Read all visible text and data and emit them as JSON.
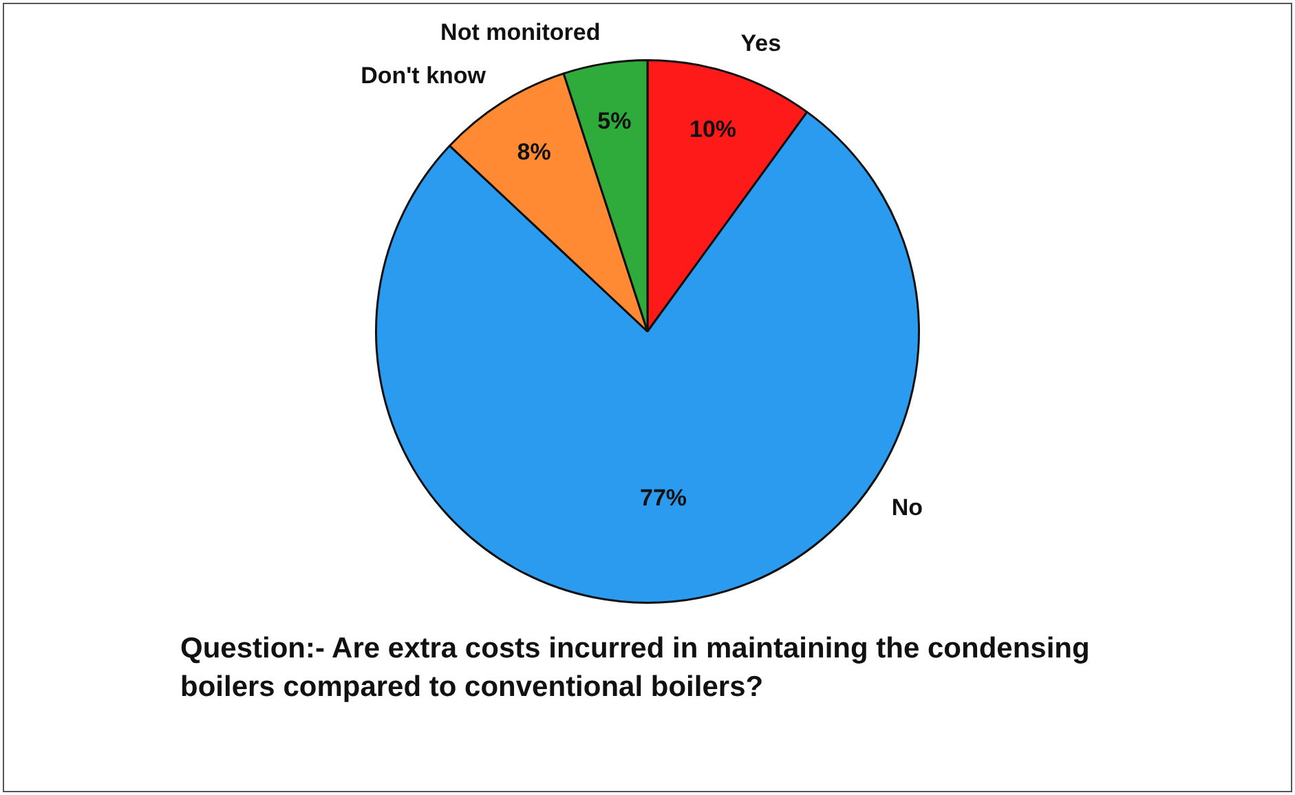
{
  "chart_data": {
    "type": "pie",
    "categories": [
      "Yes",
      "No",
      "Don't know",
      "Not monitored"
    ],
    "values": [
      10,
      77,
      8,
      5
    ],
    "colors": [
      "#ff1a1a",
      "#2b9bf0",
      "#ff8a33",
      "#2eab3a"
    ],
    "value_labels": [
      "10%",
      "77%",
      "8%",
      "5%"
    ],
    "annotations": [
      "Question:- Are extra costs incurred in maintaining the condensing boilers compared to conventional boilers?"
    ]
  }
}
